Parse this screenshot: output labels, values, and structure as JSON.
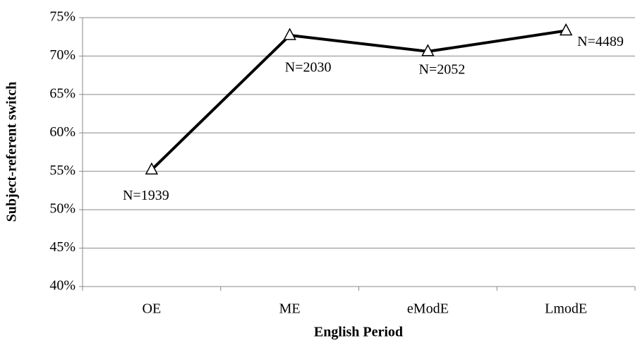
{
  "chart_data": {
    "type": "line",
    "x_label": "English Period",
    "y_label": "Subject-referent switch",
    "categories": [
      "OE",
      "ME",
      "eModE",
      "LmodE"
    ],
    "series": [
      {
        "name": "Subject-referent switch",
        "color": "#000000",
        "values": [
          55.2,
          72.7,
          70.6,
          73.3
        ]
      }
    ],
    "annotations": [
      "N=1939",
      "N=2030",
      "N=2052",
      "N=4489"
    ],
    "ylim": [
      40,
      75
    ],
    "yticks": [
      {
        "value": 40,
        "label": "40%"
      },
      {
        "value": 45,
        "label": "45%"
      },
      {
        "value": 50,
        "label": "50%"
      },
      {
        "value": 55,
        "label": "55%"
      },
      {
        "value": 60,
        "label": "60%"
      },
      {
        "value": 65,
        "label": "65%"
      },
      {
        "value": 70,
        "label": "70%"
      },
      {
        "value": 75,
        "label": "75%"
      }
    ],
    "grid": true
  }
}
